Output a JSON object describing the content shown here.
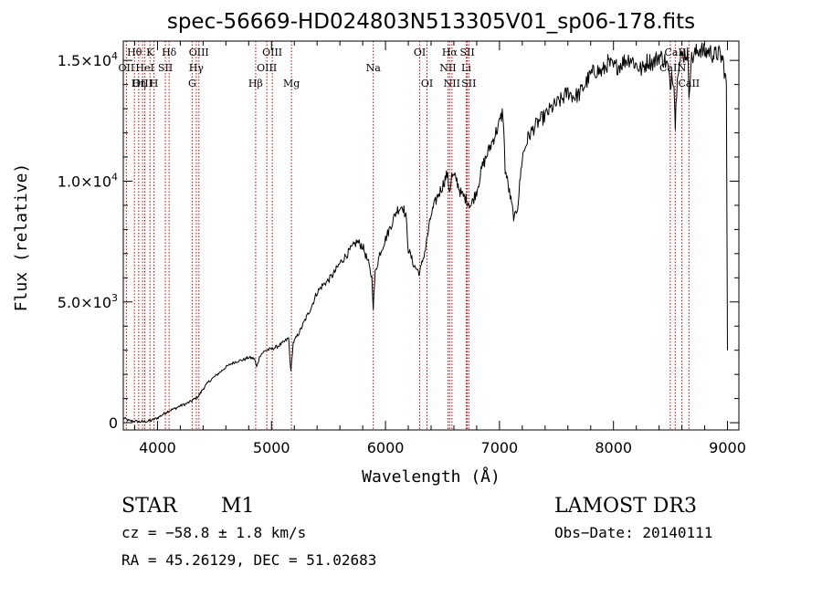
{
  "chart_data": {
    "type": "line",
    "title": "spec-56669-HD024803N513305V01_sp06-178.fits",
    "xlabel": "Wavelength (Å)",
    "ylabel": "Flux (relative)",
    "xlim": [
      3700,
      9100
    ],
    "ylim": [
      -300,
      15800
    ],
    "xticks": [
      {
        "value": 4000,
        "label": "4000"
      },
      {
        "value": 5000,
        "label": "5000"
      },
      {
        "value": 6000,
        "label": "6000"
      },
      {
        "value": 7000,
        "label": "7000"
      },
      {
        "value": 8000,
        "label": "8000"
      },
      {
        "value": 9000,
        "label": "9000"
      }
    ],
    "yticks": [
      {
        "value": 0,
        "mant": "0",
        "exp": ""
      },
      {
        "value": 5000,
        "mant": "5.0×10",
        "exp": "3"
      },
      {
        "value": 10000,
        "mant": "1.0×10",
        "exp": "4"
      },
      {
        "value": 15000,
        "mant": "1.5×10",
        "exp": "4"
      }
    ],
    "series": [
      {
        "name": "flux",
        "points": [
          [
            3700,
            200
          ],
          [
            3750,
            80
          ],
          [
            3800,
            60
          ],
          [
            3850,
            40
          ],
          [
            3900,
            50
          ],
          [
            3950,
            100
          ],
          [
            4000,
            200
          ],
          [
            4050,
            350
          ],
          [
            4100,
            500
          ],
          [
            4150,
            580
          ],
          [
            4200,
            700
          ],
          [
            4250,
            780
          ],
          [
            4300,
            900
          ],
          [
            4330,
            1000
          ],
          [
            4360,
            1100
          ],
          [
            4400,
            1400
          ],
          [
            4450,
            1700
          ],
          [
            4500,
            1900
          ],
          [
            4550,
            2100
          ],
          [
            4600,
            2300
          ],
          [
            4650,
            2450
          ],
          [
            4700,
            2550
          ],
          [
            4750,
            2600
          ],
          [
            4800,
            2700
          ],
          [
            4850,
            2650
          ],
          [
            4870,
            2300
          ],
          [
            4900,
            2800
          ],
          [
            4950,
            3000
          ],
          [
            5000,
            3050
          ],
          [
            5050,
            3150
          ],
          [
            5100,
            3300
          ],
          [
            5150,
            3500
          ],
          [
            5170,
            2100
          ],
          [
            5190,
            3300
          ],
          [
            5250,
            3800
          ],
          [
            5300,
            4300
          ],
          [
            5350,
            4800
          ],
          [
            5400,
            5400
          ],
          [
            5450,
            5700
          ],
          [
            5500,
            5900
          ],
          [
            5550,
            6200
          ],
          [
            5600,
            6600
          ],
          [
            5650,
            6900
          ],
          [
            5700,
            7200
          ],
          [
            5750,
            7500
          ],
          [
            5800,
            7300
          ],
          [
            5850,
            6600
          ],
          [
            5880,
            6000
          ],
          [
            5893,
            4800
          ],
          [
            5910,
            6200
          ],
          [
            5950,
            7000
          ],
          [
            6000,
            7600
          ],
          [
            6050,
            8200
          ],
          [
            6100,
            8800
          ],
          [
            6150,
            9000
          ],
          [
            6180,
            8500
          ],
          [
            6200,
            7200
          ],
          [
            6250,
            6500
          ],
          [
            6300,
            6200
          ],
          [
            6350,
            7200
          ],
          [
            6400,
            8600
          ],
          [
            6450,
            9300
          ],
          [
            6500,
            9800
          ],
          [
            6540,
            10300
          ],
          [
            6563,
            9600
          ],
          [
            6580,
            10200
          ],
          [
            6620,
            10100
          ],
          [
            6660,
            9500
          ],
          [
            6700,
            9300
          ],
          [
            6750,
            9000
          ],
          [
            6800,
            9600
          ],
          [
            6850,
            10600
          ],
          [
            6900,
            11200
          ],
          [
            6950,
            11800
          ],
          [
            7000,
            12400
          ],
          [
            7030,
            12900
          ],
          [
            7050,
            10500
          ],
          [
            7100,
            9200
          ],
          [
            7130,
            8400
          ],
          [
            7160,
            9000
          ],
          [
            7200,
            11000
          ],
          [
            7250,
            11800
          ],
          [
            7300,
            12200
          ],
          [
            7350,
            12500
          ],
          [
            7400,
            12700
          ],
          [
            7450,
            13000
          ],
          [
            7500,
            13200
          ],
          [
            7550,
            13400
          ],
          [
            7600,
            13700
          ],
          [
            7650,
            13500
          ],
          [
            7700,
            13600
          ],
          [
            7750,
            14000
          ],
          [
            7800,
            14400
          ],
          [
            7850,
            14600
          ],
          [
            7900,
            14500
          ],
          [
            7950,
            14900
          ],
          [
            8000,
            14700
          ],
          [
            8050,
            14800
          ],
          [
            8100,
            15000
          ],
          [
            8150,
            15100
          ],
          [
            8200,
            14800
          ],
          [
            8250,
            14600
          ],
          [
            8300,
            15000
          ],
          [
            8350,
            14900
          ],
          [
            8400,
            15200
          ],
          [
            8450,
            15000
          ],
          [
            8480,
            14700
          ],
          [
            8498,
            13800
          ],
          [
            8510,
            14500
          ],
          [
            8530,
            14200
          ],
          [
            8542,
            12300
          ],
          [
            8560,
            14600
          ],
          [
            8600,
            15200
          ],
          [
            8650,
            15300
          ],
          [
            8662,
            13600
          ],
          [
            8680,
            15000
          ],
          [
            8720,
            15300
          ],
          [
            8760,
            15500
          ],
          [
            8800,
            15300
          ],
          [
            8840,
            15400
          ],
          [
            8880,
            15200
          ],
          [
            8920,
            15300
          ],
          [
            8960,
            15000
          ],
          [
            8990,
            14000
          ],
          [
            9000,
            3000
          ]
        ]
      }
    ],
    "spectral_lines": [
      {
        "label": "Hθ",
        "wl": 3798,
        "row": 0
      },
      {
        "label": "OII",
        "wl": 3727,
        "row": 1
      },
      {
        "label": "OIII",
        "wl": 3869,
        "row": 2
      },
      {
        "label": "Hη",
        "wl": 3835,
        "row": 2
      },
      {
        "label": "K",
        "wl": 3934,
        "row": 0
      },
      {
        "label": "HeI",
        "wl": 3889,
        "row": 1
      },
      {
        "label": "H",
        "wl": 3969,
        "row": 2
      },
      {
        "label": "SII",
        "wl": 4069,
        "row": 1
      },
      {
        "label": "Hδ",
        "wl": 4102,
        "row": 0
      },
      {
        "label": "OIII",
        "wl": 4363,
        "row": 0
      },
      {
        "label": "Hγ",
        "wl": 4340,
        "row": 1
      },
      {
        "label": "G",
        "wl": 4304,
        "row": 2
      },
      {
        "label": "Hβ",
        "wl": 4861,
        "row": 2
      },
      {
        "label": "OIII",
        "wl": 5007,
        "row": 0
      },
      {
        "label": "OIII",
        "wl": 4959,
        "row": 1
      },
      {
        "label": "Mg",
        "wl": 5175,
        "row": 2
      },
      {
        "label": "Na",
        "wl": 5893,
        "row": 1
      },
      {
        "label": "OI",
        "wl": 6300,
        "row": 0
      },
      {
        "label": "OI",
        "wl": 6364,
        "row": 2
      },
      {
        "label": "Hα",
        "wl": 6563,
        "row": 0
      },
      {
        "label": "NII",
        "wl": 6548,
        "row": 1
      },
      {
        "label": "NII",
        "wl": 6583,
        "row": 2
      },
      {
        "label": "SII",
        "wl": 6717,
        "row": 0
      },
      {
        "label": "Li",
        "wl": 6708,
        "row": 1
      },
      {
        "label": "SII",
        "wl": 6731,
        "row": 2
      },
      {
        "label": "CaII",
        "wl": 8542,
        "row": 0
      },
      {
        "label": "CaII",
        "wl": 8498,
        "row": 1
      },
      {
        "label": "N",
        "wl": 8600,
        "row": 1
      },
      {
        "label": "CaII",
        "wl": 8662,
        "row": 2
      }
    ]
  },
  "info": {
    "class": "STAR",
    "subclass": "M1",
    "survey": "LAMOST DR3",
    "cz": "cz = −58.8 ± 1.8 km/s",
    "obs_date": "Obs−Date: 20140111",
    "radec": "RA =  45.26129, DEC =  51.02683"
  },
  "colors": {
    "spectrum": "#000000",
    "lines": "#cc0000"
  }
}
